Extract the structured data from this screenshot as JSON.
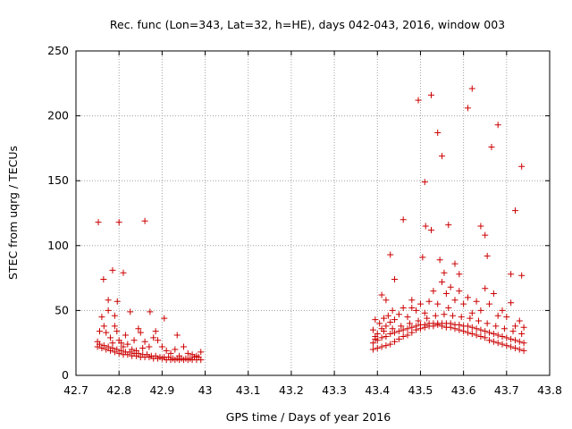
{
  "chart_data": {
    "type": "scatter",
    "title": "Rec. func (Lon=343, Lat=32, h=HE), days 042-043, 2016, window 003",
    "xlabel": "GPS time / Days of year 2016",
    "ylabel": "STEC from uqrg / TECUs",
    "xlim": [
      42.7,
      43.8
    ],
    "ylim": [
      0,
      250
    ],
    "xticks": [
      "42.7",
      "42.8",
      "42.9",
      "43",
      "43.1",
      "43.2",
      "43.3",
      "43.4",
      "43.5",
      "43.6",
      "43.7",
      "43.8"
    ],
    "yticks": [
      "0",
      "50",
      "100",
      "150",
      "200",
      "250"
    ],
    "grid": true,
    "marker": "+",
    "marker_color": "#cc0000",
    "points": [
      [
        42.752,
        118
      ],
      [
        42.764,
        74
      ],
      [
        42.775,
        58
      ],
      [
        42.785,
        81
      ],
      [
        42.79,
        46
      ],
      [
        42.796,
        57
      ],
      [
        42.8,
        118
      ],
      [
        42.81,
        79
      ],
      [
        42.826,
        49
      ],
      [
        42.845,
        36
      ],
      [
        42.86,
        119
      ],
      [
        42.872,
        49
      ],
      [
        42.885,
        34
      ],
      [
        42.905,
        44
      ],
      [
        42.935,
        31
      ],
      [
        42.75,
        26
      ],
      [
        42.755,
        34
      ],
      [
        42.76,
        45
      ],
      [
        42.765,
        38
      ],
      [
        42.77,
        33
      ],
      [
        42.775,
        50
      ],
      [
        42.78,
        29
      ],
      [
        42.785,
        25
      ],
      [
        42.79,
        38
      ],
      [
        42.795,
        34
      ],
      [
        42.8,
        27
      ],
      [
        42.805,
        25
      ],
      [
        42.81,
        22
      ],
      [
        42.815,
        31
      ],
      [
        42.82,
        24
      ],
      [
        42.83,
        20
      ],
      [
        42.835,
        27
      ],
      [
        42.84,
        19
      ],
      [
        42.85,
        33
      ],
      [
        42.855,
        21
      ],
      [
        42.86,
        26
      ],
      [
        42.87,
        22
      ],
      [
        42.88,
        29
      ],
      [
        42.89,
        27
      ],
      [
        42.9,
        22
      ],
      [
        42.91,
        19
      ],
      [
        42.92,
        17
      ],
      [
        42.93,
        20
      ],
      [
        42.94,
        15
      ],
      [
        42.95,
        22
      ],
      [
        42.96,
        17
      ],
      [
        42.97,
        16
      ],
      [
        42.98,
        15
      ],
      [
        42.99,
        18
      ],
      [
        42.75,
        22
      ],
      [
        42.76,
        21
      ],
      [
        42.77,
        20
      ],
      [
        42.78,
        19
      ],
      [
        42.79,
        18
      ],
      [
        42.8,
        17
      ],
      [
        42.81,
        16
      ],
      [
        42.82,
        16
      ],
      [
        42.83,
        15
      ],
      [
        42.84,
        15
      ],
      [
        42.85,
        14
      ],
      [
        42.86,
        14
      ],
      [
        42.87,
        14
      ],
      [
        42.88,
        13
      ],
      [
        42.89,
        13
      ],
      [
        42.9,
        13
      ],
      [
        42.91,
        12
      ],
      [
        42.92,
        12
      ],
      [
        42.93,
        12
      ],
      [
        42.94,
        12
      ],
      [
        42.95,
        12
      ],
      [
        42.96,
        12
      ],
      [
        42.97,
        12
      ],
      [
        42.98,
        12
      ],
      [
        42.99,
        12
      ],
      [
        42.755,
        24
      ],
      [
        42.765,
        23
      ],
      [
        42.775,
        22
      ],
      [
        42.785,
        21
      ],
      [
        42.795,
        20
      ],
      [
        42.805,
        19
      ],
      [
        42.815,
        18
      ],
      [
        42.825,
        18
      ],
      [
        42.835,
        17
      ],
      [
        42.845,
        17
      ],
      [
        42.855,
        16
      ],
      [
        42.865,
        16
      ],
      [
        42.875,
        15
      ],
      [
        42.885,
        15
      ],
      [
        42.895,
        14
      ],
      [
        42.905,
        14
      ],
      [
        42.915,
        14
      ],
      [
        42.925,
        13
      ],
      [
        42.935,
        13
      ],
      [
        42.945,
        13
      ],
      [
        42.955,
        13
      ],
      [
        42.965,
        13
      ],
      [
        42.975,
        14
      ],
      [
        42.985,
        14
      ],
      [
        43.395,
        43
      ],
      [
        43.41,
        62
      ],
      [
        43.42,
        58
      ],
      [
        43.43,
        93
      ],
      [
        43.44,
        74
      ],
      [
        43.46,
        120
      ],
      [
        43.48,
        58
      ],
      [
        43.495,
        212
      ],
      [
        43.505,
        91
      ],
      [
        43.51,
        149
      ],
      [
        43.512,
        115
      ],
      [
        43.525,
        216
      ],
      [
        43.525,
        112
      ],
      [
        43.54,
        187
      ],
      [
        43.545,
        89
      ],
      [
        43.55,
        169
      ],
      [
        43.555,
        79
      ],
      [
        43.565,
        116
      ],
      [
        43.58,
        86
      ],
      [
        43.59,
        78
      ],
      [
        43.61,
        206
      ],
      [
        43.62,
        221
      ],
      [
        43.64,
        115
      ],
      [
        43.65,
        108
      ],
      [
        43.655,
        92
      ],
      [
        43.665,
        176
      ],
      [
        43.68,
        193
      ],
      [
        43.71,
        78
      ],
      [
        43.72,
        127
      ],
      [
        43.735,
        161
      ],
      [
        43.735,
        77
      ],
      [
        43.39,
        35
      ],
      [
        43.395,
        28
      ],
      [
        43.4,
        32
      ],
      [
        43.405,
        40
      ],
      [
        43.41,
        36
      ],
      [
        43.415,
        44
      ],
      [
        43.42,
        38
      ],
      [
        43.425,
        46
      ],
      [
        43.43,
        41
      ],
      [
        43.435,
        50
      ],
      [
        43.44,
        43
      ],
      [
        43.45,
        47
      ],
      [
        43.46,
        52
      ],
      [
        43.47,
        45
      ],
      [
        43.48,
        52
      ],
      [
        43.49,
        50
      ],
      [
        43.5,
        55
      ],
      [
        43.51,
        48
      ],
      [
        43.52,
        57
      ],
      [
        43.53,
        65
      ],
      [
        43.54,
        55
      ],
      [
        43.55,
        72
      ],
      [
        43.56,
        63
      ],
      [
        43.565,
        52
      ],
      [
        43.57,
        68
      ],
      [
        43.58,
        58
      ],
      [
        43.59,
        65
      ],
      [
        43.6,
        55
      ],
      [
        43.61,
        60
      ],
      [
        43.62,
        48
      ],
      [
        43.63,
        57
      ],
      [
        43.64,
        50
      ],
      [
        43.65,
        67
      ],
      [
        43.66,
        55
      ],
      [
        43.67,
        63
      ],
      [
        43.68,
        46
      ],
      [
        43.69,
        50
      ],
      [
        43.7,
        45
      ],
      [
        43.71,
        56
      ],
      [
        43.72,
        38
      ],
      [
        43.73,
        42
      ],
      [
        43.74,
        37
      ],
      [
        43.39,
        25
      ],
      [
        43.4,
        27
      ],
      [
        43.41,
        29
      ],
      [
        43.42,
        30
      ],
      [
        43.43,
        32
      ],
      [
        43.44,
        33
      ],
      [
        43.45,
        34
      ],
      [
        43.46,
        35
      ],
      [
        43.47,
        36
      ],
      [
        43.48,
        37
      ],
      [
        43.49,
        38
      ],
      [
        43.5,
        39
      ],
      [
        43.51,
        39
      ],
      [
        43.52,
        40
      ],
      [
        43.53,
        40
      ],
      [
        43.54,
        40
      ],
      [
        43.55,
        40
      ],
      [
        43.56,
        40
      ],
      [
        43.57,
        40
      ],
      [
        43.58,
        39
      ],
      [
        43.59,
        39
      ],
      [
        43.6,
        38
      ],
      [
        43.61,
        38
      ],
      [
        43.62,
        37
      ],
      [
        43.63,
        36
      ],
      [
        43.64,
        35
      ],
      [
        43.65,
        34
      ],
      [
        43.66,
        33
      ],
      [
        43.67,
        32
      ],
      [
        43.68,
        31
      ],
      [
        43.69,
        30
      ],
      [
        43.7,
        29
      ],
      [
        43.71,
        28
      ],
      [
        43.72,
        27
      ],
      [
        43.73,
        26
      ],
      [
        43.74,
        25
      ],
      [
        43.39,
        20
      ],
      [
        43.4,
        21
      ],
      [
        43.41,
        22
      ],
      [
        43.42,
        23
      ],
      [
        43.43,
        24
      ],
      [
        43.44,
        26
      ],
      [
        43.45,
        28
      ],
      [
        43.46,
        30
      ],
      [
        43.47,
        31
      ],
      [
        43.48,
        33
      ],
      [
        43.49,
        35
      ],
      [
        43.5,
        36
      ],
      [
        43.51,
        37
      ],
      [
        43.52,
        38
      ],
      [
        43.53,
        38
      ],
      [
        43.54,
        39
      ],
      [
        43.55,
        38
      ],
      [
        43.56,
        37
      ],
      [
        43.57,
        37
      ],
      [
        43.58,
        36
      ],
      [
        43.59,
        35
      ],
      [
        43.6,
        34
      ],
      [
        43.61,
        33
      ],
      [
        43.62,
        32
      ],
      [
        43.63,
        31
      ],
      [
        43.64,
        30
      ],
      [
        43.65,
        29
      ],
      [
        43.66,
        27
      ],
      [
        43.67,
        26
      ],
      [
        43.68,
        25
      ],
      [
        43.69,
        24
      ],
      [
        43.7,
        23
      ],
      [
        43.71,
        22
      ],
      [
        43.72,
        21
      ],
      [
        43.73,
        20
      ],
      [
        43.74,
        19
      ],
      [
        43.395,
        30
      ],
      [
        43.415,
        34
      ],
      [
        43.435,
        36
      ],
      [
        43.455,
        38
      ],
      [
        43.475,
        40
      ],
      [
        43.495,
        42
      ],
      [
        43.515,
        44
      ],
      [
        43.535,
        46
      ],
      [
        43.555,
        47
      ],
      [
        43.575,
        46
      ],
      [
        43.595,
        45
      ],
      [
        43.615,
        44
      ],
      [
        43.635,
        42
      ],
      [
        43.655,
        40
      ],
      [
        43.675,
        38
      ],
      [
        43.695,
        36
      ],
      [
        43.715,
        34
      ],
      [
        43.735,
        32
      ]
    ]
  }
}
